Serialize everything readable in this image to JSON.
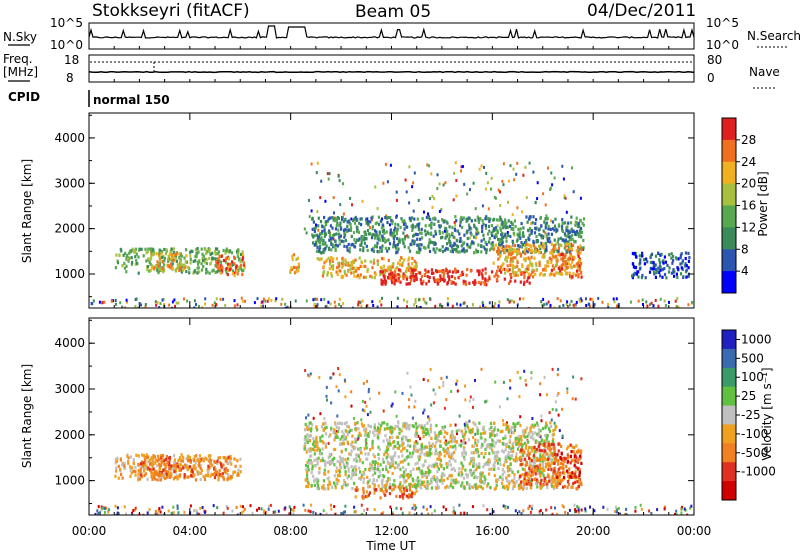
{
  "header": {
    "station": "Stokkseyri (fitACF)",
    "beam": "Beam 05",
    "date": "04/Dec/2011"
  },
  "summary": {
    "nsky_label": "N.Sky",
    "nsky_ticks": [
      "10^5",
      "10^0"
    ],
    "nsearch_label": "N.Search",
    "nsearch_ticks": [
      "10^5",
      "10^0"
    ],
    "freq_label_1": "Freq.",
    "freq_label_2": "[MHz]",
    "freq_ticks": [
      "18",
      "8"
    ],
    "nave_label": "Nave",
    "nave_ticks": [
      "80",
      "0"
    ],
    "cpid_label": "CPID",
    "cpid_value": "normal 150"
  },
  "chart_data": [
    {
      "type": "heatmap",
      "name": "power",
      "ylabel": "Slant Range [km]",
      "xlabel": "",
      "yticks": [
        "1000",
        "2000",
        "3000",
        "4000"
      ],
      "ylim": [
        250,
        4550
      ],
      "colorbar_label": "Power [dB]",
      "colorbar_ticks": [
        "4",
        "8",
        "12",
        "16",
        "20",
        "24",
        "28"
      ],
      "colors": [
        "#0000ff",
        "#2b55b0",
        "#3a8a5a",
        "#58a850",
        "#a8c040",
        "#f0b020",
        "#f07020",
        "#e02020"
      ],
      "regions": [
        {
          "t0": 1.0,
          "t1": 6.1,
          "r0": 1050,
          "r1": 1600,
          "level": 3
        },
        {
          "t0": 2.4,
          "t1": 3.9,
          "r0": 1100,
          "r1": 1500,
          "level": 5
        },
        {
          "t0": 5.0,
          "t1": 6.2,
          "r0": 1000,
          "r1": 1450,
          "level": 6
        },
        {
          "t0": 7.9,
          "t1": 8.3,
          "r0": 1050,
          "r1": 1500,
          "level": 5
        },
        {
          "t0": 8.8,
          "t1": 19.6,
          "r0": 1500,
          "r1": 2300,
          "level": 2
        },
        {
          "t0": 9.0,
          "t1": 13.0,
          "r0": 950,
          "r1": 1400,
          "level": 5
        },
        {
          "t0": 11.5,
          "t1": 17.6,
          "r0": 800,
          "r1": 1150,
          "level": 7
        },
        {
          "t0": 16.0,
          "t1": 19.5,
          "r0": 1000,
          "r1": 1700,
          "level": 5
        },
        {
          "t0": 18.3,
          "t1": 19.5,
          "r0": 950,
          "r1": 1500,
          "level": 6
        },
        {
          "t0": 21.5,
          "t1": 23.8,
          "r0": 950,
          "r1": 1500,
          "level": 1
        }
      ]
    },
    {
      "type": "heatmap",
      "name": "velocity",
      "ylabel": "Slant Range [km]",
      "xlabel": "Time UT",
      "xticks": [
        "00:00",
        "04:00",
        "08:00",
        "12:00",
        "16:00",
        "20:00",
        "00:00"
      ],
      "yticks": [
        "1000",
        "2000",
        "3000",
        "4000"
      ],
      "ylim": [
        250,
        4550
      ],
      "colorbar_label": "Velocity [m s⁻¹]",
      "colorbar_ticks": [
        "1000",
        "500",
        "100",
        "25",
        "-25",
        "-100",
        "-500",
        "-1000"
      ],
      "colors": [
        "#2020c0",
        "#3a6ab0",
        "#3a9a6a",
        "#60c040",
        "#c0c0c0",
        "#f0a020",
        "#f08020",
        "#e03020",
        "#d00000"
      ],
      "regions": [
        {
          "t0": 1.0,
          "t1": 6.0,
          "r0": 1050,
          "r1": 1600,
          "level": 5
        },
        {
          "t0": 2.0,
          "t1": 5.5,
          "r0": 1100,
          "r1": 1550,
          "level": 6
        },
        {
          "t0": 8.5,
          "t1": 18.5,
          "r0": 850,
          "r1": 2300,
          "level": 4
        },
        {
          "t0": 10.5,
          "t1": 13.0,
          "r0": 650,
          "r1": 900,
          "level": 6
        },
        {
          "t0": 17.0,
          "t1": 19.5,
          "r0": 850,
          "r1": 1850,
          "level": 6
        },
        {
          "t0": 18.4,
          "t1": 19.5,
          "r0": 1100,
          "r1": 1700,
          "level": 7
        }
      ]
    }
  ]
}
